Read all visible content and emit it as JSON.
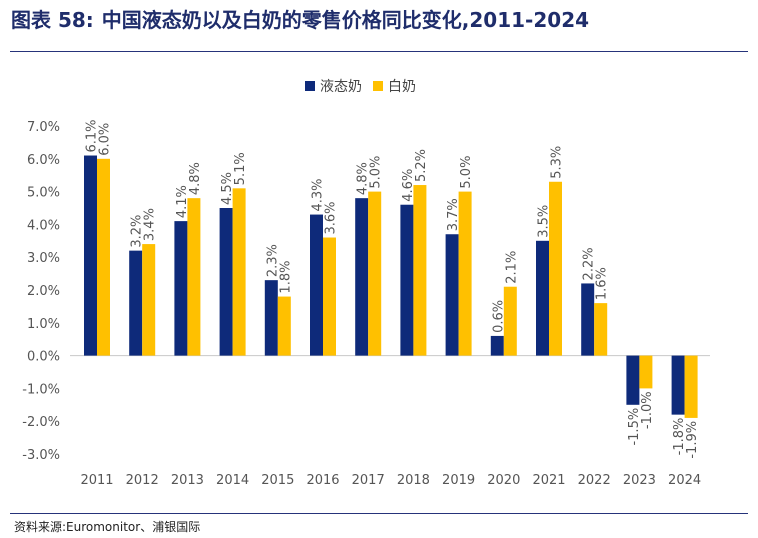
{
  "header": {
    "figure_number": "图表 58:",
    "title": "中国液态奶以及白奶的零售价格同比变化,2011-2024"
  },
  "source": "资料来源:Euromonitor、浦银国际",
  "chart_data": {
    "type": "bar",
    "categories": [
      "2011",
      "2012",
      "2013",
      "2014",
      "2015",
      "2016",
      "2017",
      "2018",
      "2019",
      "2020",
      "2021",
      "2022",
      "2023",
      "2024"
    ],
    "series": [
      {
        "name": "液态奶",
        "color": "#0e2a7a",
        "values": [
          6.1,
          3.2,
          4.1,
          4.5,
          2.3,
          4.3,
          4.8,
          4.6,
          3.7,
          0.6,
          3.5,
          2.2,
          -1.5,
          -1.8
        ],
        "labels": [
          "6.1%",
          "3.2%",
          "4.1%",
          "4.5%",
          "2.3%",
          "4.3%",
          "4.8%",
          "4.6%",
          "3.7%",
          "0.6%",
          "3.5%",
          "2.2%",
          "-1.5%",
          "-1.8%"
        ]
      },
      {
        "name": "白奶",
        "color": "#ffc000",
        "values": [
          6.0,
          3.4,
          4.8,
          5.1,
          1.8,
          3.6,
          5.0,
          5.2,
          5.0,
          2.1,
          5.3,
          1.6,
          -1.0,
          -1.9
        ],
        "labels": [
          "6.0%",
          "3.4%",
          "4.8%",
          "5.1%",
          "1.8%",
          "3.6%",
          "5.0%",
          "5.2%",
          "5.0%",
          "2.1%",
          "5.3%",
          "1.6%",
          "-1.0%",
          "-1.9%"
        ]
      }
    ],
    "y_ticks": [
      "7.0%",
      "6.0%",
      "5.0%",
      "4.0%",
      "3.0%",
      "2.0%",
      "1.0%",
      "0.0%",
      "-1.0%",
      "-2.0%",
      "-3.0%"
    ],
    "ylim": [
      -3.0,
      7.0
    ],
    "legend_position": "top-center",
    "grid": false
  }
}
